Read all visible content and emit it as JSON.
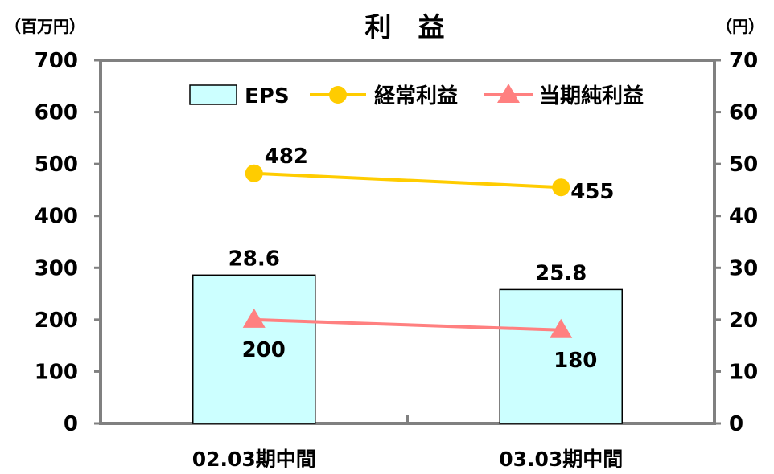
{
  "chart_data": {
    "type": "bar",
    "title": "利　益",
    "ylabel_left": "（百万円）",
    "ylabel_right": "（円）",
    "categories": [
      "02.03期中間",
      "03.03期中間"
    ],
    "ylim_left": [
      0,
      700
    ],
    "ylim_right": [
      0,
      70
    ],
    "yticks_left": [
      0,
      100,
      200,
      300,
      400,
      500,
      600,
      700
    ],
    "yticks_right": [
      0,
      10,
      20,
      30,
      40,
      50,
      60,
      70
    ],
    "grid": false,
    "legend_position": "top",
    "series": [
      {
        "name": "EPS",
        "kind": "bar",
        "axis": "right",
        "values": [
          28.6,
          25.8
        ],
        "labels": [
          "28.6",
          "25.8"
        ],
        "color": "#ccffff",
        "stroke": "#000000"
      },
      {
        "name": "経常利益",
        "kind": "line",
        "marker": "circle",
        "axis": "left",
        "values": [
          482,
          455
        ],
        "labels": [
          "482",
          "455"
        ],
        "color": "#ffcc00"
      },
      {
        "name": "当期純利益",
        "kind": "line",
        "marker": "triangle",
        "axis": "left",
        "values": [
          200,
          180
        ],
        "labels": [
          "200",
          "180"
        ],
        "color": "#ff8080"
      }
    ],
    "axis_color": "#808080"
  }
}
